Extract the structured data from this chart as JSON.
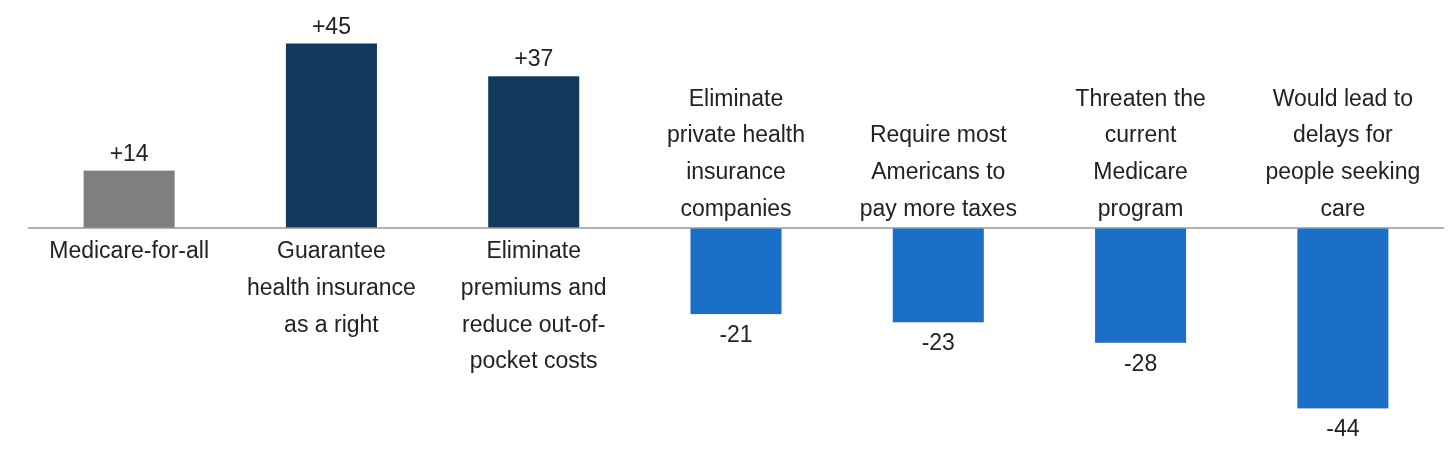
{
  "chart_data": {
    "type": "bar",
    "categories": [
      "Medicare-for-all",
      "Guarantee health insurance as a right",
      "Eliminate premiums and reduce out-of-pocket costs",
      "Eliminate private health insurance companies",
      "Require most Americans to pay more taxes",
      "Threaten the current Medicare program",
      "Would lead to delays for people seeking care"
    ],
    "values": [
      14,
      45,
      37,
      -21,
      -23,
      -28,
      -44
    ],
    "colors": [
      "#7f7f7f",
      "#12395b",
      "#12395b",
      "#1b6fc6",
      "#1b6fc6",
      "#1b6fc6",
      "#1b6fc6"
    ],
    "value_labels": [
      "+14",
      "+45",
      "+37",
      "-21",
      "-23",
      "-28",
      "-44"
    ]
  }
}
